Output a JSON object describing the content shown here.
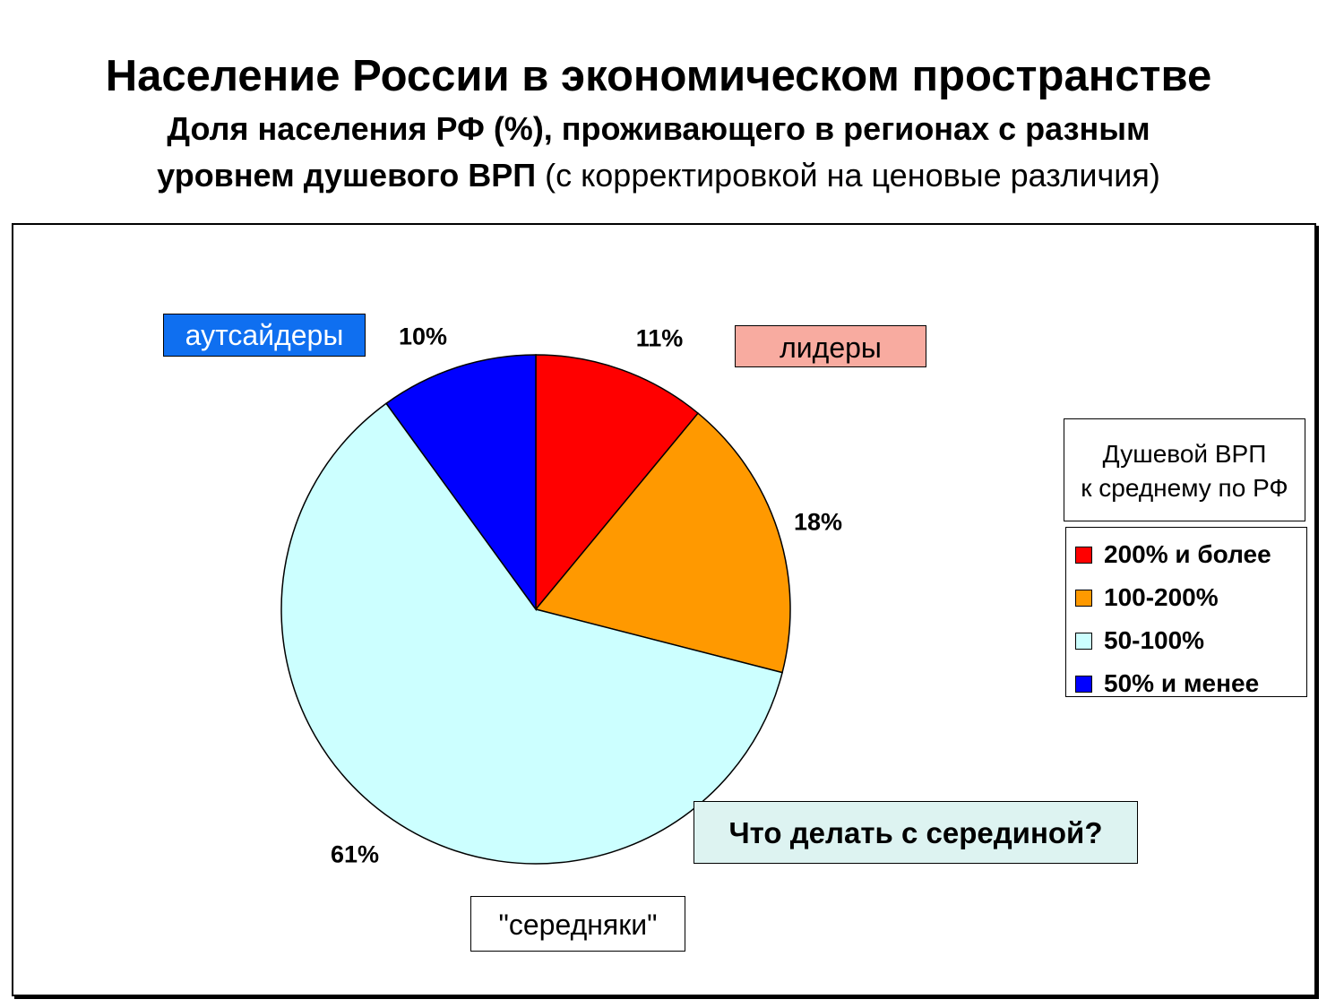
{
  "slide": {
    "title": "Население России в экономическом пространстве",
    "subtitle_bold_line1": "Доля населения РФ (%), проживающего в регионах с разным",
    "subtitle_bold_line2": "уровнем душевого ВРП",
    "subtitle_normal": " (с корректировкой на ценовые различия)"
  },
  "annotations": {
    "outsiders": "аутсайдеры",
    "leaders": "лидеры",
    "middle": "\"середняки\"",
    "question": "Что делать с серединой?"
  },
  "legend": {
    "title_line1": "Душевой ВРП",
    "title_line2": "к среднему по РФ"
  },
  "chart_data": {
    "type": "pie",
    "categories": [
      "200% и более",
      "100-200%",
      "50-100%",
      "50% и менее"
    ],
    "values": [
      11,
      18,
      61,
      10
    ],
    "value_labels": [
      "11%",
      "18%",
      "61%",
      "10%"
    ],
    "colors": [
      "#ff0000",
      "#ff9900",
      "#ccffff",
      "#0000ff"
    ],
    "start_angle_deg": 0,
    "direction": "clockwise",
    "legend_position": "right"
  }
}
